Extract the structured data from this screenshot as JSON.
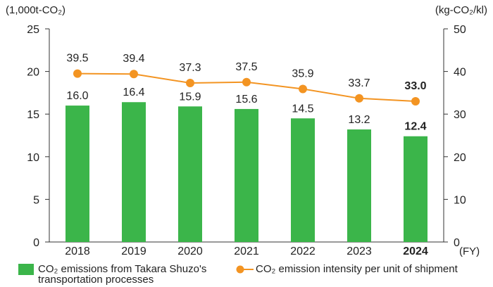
{
  "chart_data": {
    "type": "bar+line",
    "categories": [
      "2018",
      "2019",
      "2020",
      "2021",
      "2022",
      "2023",
      "2024"
    ],
    "highlight_category": "2024",
    "x_unit": "(FY)",
    "left_axis": {
      "label": "(1,000t-CO₂)",
      "ylim": [
        0,
        25
      ],
      "ticks": [
        0,
        5,
        10,
        15,
        20,
        25
      ]
    },
    "right_axis": {
      "label": "(kg-CO₂/kl)",
      "ylim": [
        0,
        50
      ],
      "ticks": [
        0,
        10,
        20,
        30,
        40,
        50
      ]
    },
    "grid": false,
    "series": [
      {
        "name": "CO₂ emissions from Takara Shuzo's transportation processes",
        "type": "bar",
        "axis": "left",
        "color": "#3bb54a",
        "values": [
          16.0,
          16.4,
          15.9,
          15.6,
          14.5,
          13.2,
          12.4
        ],
        "labels": [
          "16.0",
          "16.4",
          "15.9",
          "15.6",
          "14.5",
          "13.2",
          "12.4"
        ]
      },
      {
        "name": "CO₂ emission intensity per unit of shipment",
        "type": "line",
        "axis": "right",
        "color": "#f39422",
        "values": [
          39.5,
          39.4,
          37.3,
          37.5,
          35.9,
          33.7,
          33.0
        ],
        "labels": [
          "39.5",
          "39.4",
          "37.3",
          "37.5",
          "35.9",
          "33.7",
          "33.0"
        ]
      }
    ],
    "legend_position": "bottom"
  },
  "legend": {
    "bar_line1": "CO₂ emissions from Takara Shuzo's",
    "bar_line2": "transportation processes",
    "line": "CO₂ emission intensity per unit of shipment"
  }
}
